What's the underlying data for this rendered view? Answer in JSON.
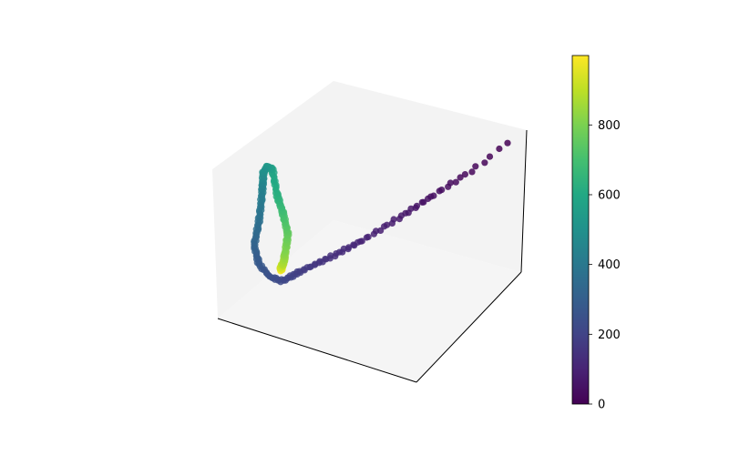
{
  "chart_data": {
    "type": "scatter",
    "subtype": "3d-trajectory",
    "title": "",
    "xlabel": "",
    "ylabel": "",
    "zlabel": "",
    "axes_ticks_shown": false,
    "grid": false,
    "legend": "none",
    "colormap": "viridis",
    "color_value_range": [
      0,
      999
    ],
    "point_count": 1000,
    "trajectory": {
      "description_of_color": "color encodes point index 0-999",
      "segments": [
        {
          "index_range": [
            0,
            120
          ],
          "shape": "long straight run from the far right-back corner toward the center, points sparse at start, densely spaced later"
        },
        {
          "index_range": [
            120,
            260
          ],
          "shape": "bend at lower-left of the loop"
        },
        {
          "index_range": [
            260,
            640
          ],
          "shape": "rise up the left side to the top of the loop"
        },
        {
          "index_range": [
            640,
            999
          ],
          "shape": "descend the right side of the loop, ending at the bottom"
        }
      ]
    },
    "colorbar": {
      "ticks": [
        0,
        200,
        400,
        600,
        800
      ],
      "range": [
        0,
        999
      ]
    },
    "colors": {
      "pane_left": "#ebebeb",
      "pane_back": "#eeeeee",
      "pane_floor": "#f2f2f2",
      "axis_line": "#000000"
    }
  }
}
